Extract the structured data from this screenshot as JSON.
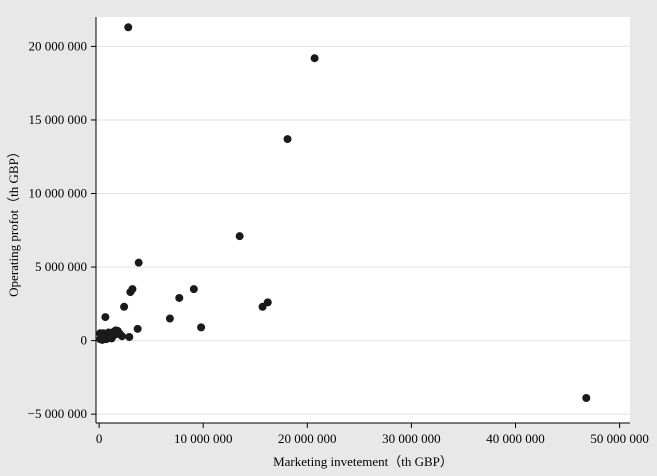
{
  "chart_data": {
    "type": "scatter",
    "title": "",
    "xlabel": "Marketing invetement（th GBP）",
    "ylabel": "Operating profot（th GBP）",
    "xlim": [
      -300000,
      51000000
    ],
    "ylim": [
      -5600000,
      22000000
    ],
    "grid": true,
    "legend": "none",
    "x_ticks": [
      0,
      10000000,
      20000000,
      30000000,
      40000000,
      50000000
    ],
    "x_tick_labels": [
      "0",
      "10 000 000",
      "20 000 000",
      "30 000 000",
      "40 000 000",
      "50 000 000"
    ],
    "y_ticks": [
      -5000000,
      0,
      5000000,
      10000000,
      15000000,
      20000000
    ],
    "y_tick_labels": [
      "−5 000 000",
      "0",
      "5 000 000",
      "10 000 000",
      "15 000 000",
      "20 000 000"
    ],
    "colors": {
      "background": "#e8e8e8",
      "plot_background": "#ffffff",
      "grid": "#e2e2e2",
      "point": "#1a1a1a",
      "axis": "#000000"
    },
    "series": [
      {
        "x": [
          2800000,
          20700000,
          18100000,
          13500000,
          3800000,
          3000000,
          3200000,
          7700000,
          9100000,
          2400000,
          16200000,
          15700000,
          6800000,
          9800000,
          3700000,
          600000,
          100000,
          200000,
          300000,
          400000,
          500000,
          700000,
          800000,
          900000,
          1100000,
          1200000,
          1400000,
          1600000,
          1800000,
          2000000,
          2200000,
          2900000,
          100000,
          300000,
          500000,
          900000,
          1300000,
          1500000,
          46800000
        ],
        "y": [
          21300000,
          19200000,
          13700000,
          7100000,
          5300000,
          3300000,
          3500000,
          2900000,
          3500000,
          2300000,
          2600000,
          2300000,
          1500000,
          900000,
          800000,
          1600000,
          100000,
          400000,
          200000,
          500000,
          300000,
          100000,
          450000,
          250000,
          350000,
          150000,
          600000,
          700000,
          650000,
          450000,
          300000,
          250000,
          500000,
          50000,
          200000,
          550000,
          300000,
          400000,
          -3900000
        ]
      }
    ]
  }
}
